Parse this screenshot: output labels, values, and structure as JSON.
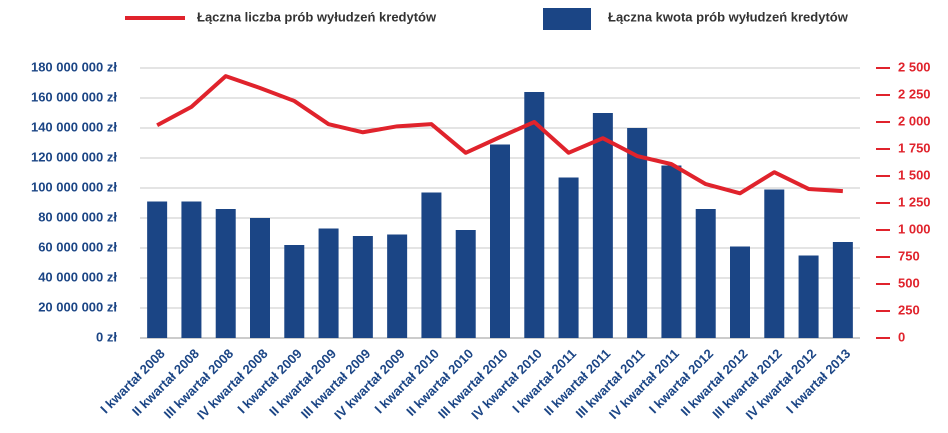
{
  "chart_data": {
    "type": "bar-line",
    "categories": [
      "I kwartał 2008",
      "II kwartał 2008",
      "III kwartał 2008",
      "IV kwartał 2008",
      "I kwartał 2009",
      "II kwartał 2009",
      "III kwartał 2009",
      "IV kwartał 2009",
      "I kwartał 2010",
      "II kwartał 2010",
      "III kwartał 2010",
      "IV kwartał 2010",
      "I kwartał 2011",
      "II kwartał 2011",
      "III kwartał 2011",
      "IV kwartał 2011",
      "I kwartał 2012",
      "II kwartał 2012",
      "III kwartał 2012",
      "IV kwartał 2012",
      "I kwartał 2013"
    ],
    "series": [
      {
        "name": "Łączna liczba prób wyłudzeń kredytów",
        "type": "line",
        "axis": "y2",
        "color": "#e0232c",
        "values": [
          1970,
          2140,
          2425,
          2315,
          2195,
          1980,
          1905,
          1960,
          1980,
          1715,
          1860,
          2000,
          1715,
          1850,
          1685,
          1610,
          1425,
          1340,
          1535,
          1380,
          1360
        ]
      },
      {
        "name": "Łączna kwota prób wyłudzeń kredytów",
        "type": "bar",
        "axis": "y",
        "color": "#1b4585",
        "values": [
          91000000,
          91000000,
          86000000,
          80000000,
          62000000,
          73000000,
          68000000,
          69000000,
          97000000,
          72000000,
          129000000,
          164000000,
          107000000,
          150000000,
          140000000,
          115000000,
          86000000,
          61000000,
          99000000,
          55000000,
          64000000
        ]
      }
    ],
    "ylim": [
      0,
      180000000
    ],
    "yticks": [
      {
        "value": 0,
        "label": "0 zł"
      },
      {
        "value": 20000000,
        "label": "20 000 000 zł"
      },
      {
        "value": 40000000,
        "label": "40 000 000 zł"
      },
      {
        "value": 60000000,
        "label": "60 000 000 zł"
      },
      {
        "value": 80000000,
        "label": "80 000 000 zł"
      },
      {
        "value": 100000000,
        "label": "100 000 000 zł"
      },
      {
        "value": 120000000,
        "label": "120 000 000 zł"
      },
      {
        "value": 140000000,
        "label": "140 000 000 zł"
      },
      {
        "value": 160000000,
        "label": "160 000 000 zł"
      },
      {
        "value": 180000000,
        "label": "180 000 000 zł"
      }
    ],
    "y2lim": [
      0,
      2500
    ],
    "y2ticks": [
      0,
      250,
      500,
      750,
      {
        "value": 1000,
        "label": "1 000"
      },
      {
        "value": 1250,
        "label": "1 250"
      },
      {
        "value": 1500,
        "label": "1 500"
      },
      {
        "value": 1750,
        "label": "1 750"
      },
      {
        "value": 2000,
        "label": "2 000"
      },
      {
        "value": 2250,
        "label": "2 250"
      },
      {
        "value": 2500,
        "label": "2 500"
      }
    ],
    "grid": true,
    "legend": "top"
  }
}
